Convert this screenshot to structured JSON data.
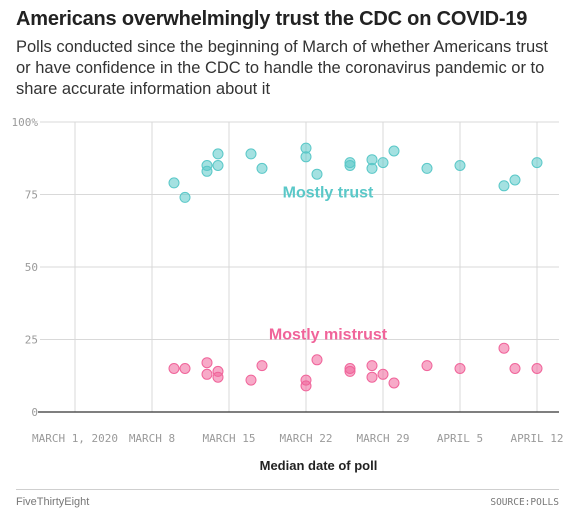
{
  "header": {
    "title": "Americans overwhelmingly trust the CDC on COVID-19",
    "subtitle": "Polls conducted since the beginning of March of whether Americans trust or have confidence in the CDC to handle the coronavirus pandemic or to share accurate information about it"
  },
  "footer": {
    "left": "FiveThirtyEight",
    "right": "SOURCE:POLLS"
  },
  "colors": {
    "trust": "#5ac8c8",
    "mistrust": "#f0649a",
    "grid": "#d9d9d9",
    "axis": "#333333"
  },
  "chart_data": {
    "type": "scatter",
    "xlabel": "Median date of poll",
    "ylabel": "",
    "x_unit": "date (2020)",
    "xlim": [
      "2020-02-27",
      "2020-04-14"
    ],
    "ylim": [
      0,
      100
    ],
    "x_ticks": [
      {
        "date": "2020-03-01",
        "label": "MARCH 1, 2020"
      },
      {
        "date": "2020-03-08",
        "label": "MARCH 8"
      },
      {
        "date": "2020-03-15",
        "label": "MARCH 15"
      },
      {
        "date": "2020-03-22",
        "label": "MARCH 22"
      },
      {
        "date": "2020-03-29",
        "label": "MARCH 29"
      },
      {
        "date": "2020-04-05",
        "label": "APRIL 5"
      },
      {
        "date": "2020-04-12",
        "label": "APRIL 12"
      }
    ],
    "y_ticks": [
      {
        "value": 0,
        "label": "0"
      },
      {
        "value": 25,
        "label": "25"
      },
      {
        "value": 50,
        "label": "50"
      },
      {
        "value": 75,
        "label": "75"
      },
      {
        "value": 100,
        "label": "100%"
      }
    ],
    "grid": true,
    "series": [
      {
        "name": "Mostly trust",
        "color": "#5ac8c8",
        "points": [
          {
            "x": "2020-03-10",
            "y": 79
          },
          {
            "x": "2020-03-11",
            "y": 74
          },
          {
            "x": "2020-03-13",
            "y": 85
          },
          {
            "x": "2020-03-13",
            "y": 83
          },
          {
            "x": "2020-03-14",
            "y": 89
          },
          {
            "x": "2020-03-14",
            "y": 85
          },
          {
            "x": "2020-03-17",
            "y": 89
          },
          {
            "x": "2020-03-18",
            "y": 84
          },
          {
            "x": "2020-03-22",
            "y": 91
          },
          {
            "x": "2020-03-22",
            "y": 88
          },
          {
            "x": "2020-03-23",
            "y": 82
          },
          {
            "x": "2020-03-26",
            "y": 86
          },
          {
            "x": "2020-03-26",
            "y": 85
          },
          {
            "x": "2020-03-28",
            "y": 87
          },
          {
            "x": "2020-03-28",
            "y": 84
          },
          {
            "x": "2020-03-29",
            "y": 86
          },
          {
            "x": "2020-03-30",
            "y": 90
          },
          {
            "x": "2020-04-02",
            "y": 84
          },
          {
            "x": "2020-04-05",
            "y": 85
          },
          {
            "x": "2020-04-09",
            "y": 78
          },
          {
            "x": "2020-04-10",
            "y": 80
          },
          {
            "x": "2020-04-12",
            "y": 86
          }
        ]
      },
      {
        "name": "Mostly mistrust",
        "color": "#f0649a",
        "points": [
          {
            "x": "2020-03-10",
            "y": 15
          },
          {
            "x": "2020-03-11",
            "y": 15
          },
          {
            "x": "2020-03-13",
            "y": 17
          },
          {
            "x": "2020-03-13",
            "y": 13
          },
          {
            "x": "2020-03-14",
            "y": 14
          },
          {
            "x": "2020-03-14",
            "y": 12
          },
          {
            "x": "2020-03-17",
            "y": 11
          },
          {
            "x": "2020-03-18",
            "y": 16
          },
          {
            "x": "2020-03-22",
            "y": 11
          },
          {
            "x": "2020-03-22",
            "y": 9
          },
          {
            "x": "2020-03-23",
            "y": 18
          },
          {
            "x": "2020-03-26",
            "y": 15
          },
          {
            "x": "2020-03-26",
            "y": 14
          },
          {
            "x": "2020-03-28",
            "y": 16
          },
          {
            "x": "2020-03-28",
            "y": 12
          },
          {
            "x": "2020-03-29",
            "y": 13
          },
          {
            "x": "2020-03-30",
            "y": 10
          },
          {
            "x": "2020-04-02",
            "y": 16
          },
          {
            "x": "2020-04-05",
            "y": 15
          },
          {
            "x": "2020-04-09",
            "y": 22
          },
          {
            "x": "2020-04-10",
            "y": 15
          },
          {
            "x": "2020-04-12",
            "y": 15
          }
        ]
      }
    ],
    "annotations": [
      {
        "text": "Mostly trust",
        "series": "Mostly trust",
        "x": "2020-03-24",
        "y": 74
      },
      {
        "text": "Mostly mistrust",
        "series": "Mostly mistrust",
        "x": "2020-03-24",
        "y": 25
      }
    ]
  }
}
